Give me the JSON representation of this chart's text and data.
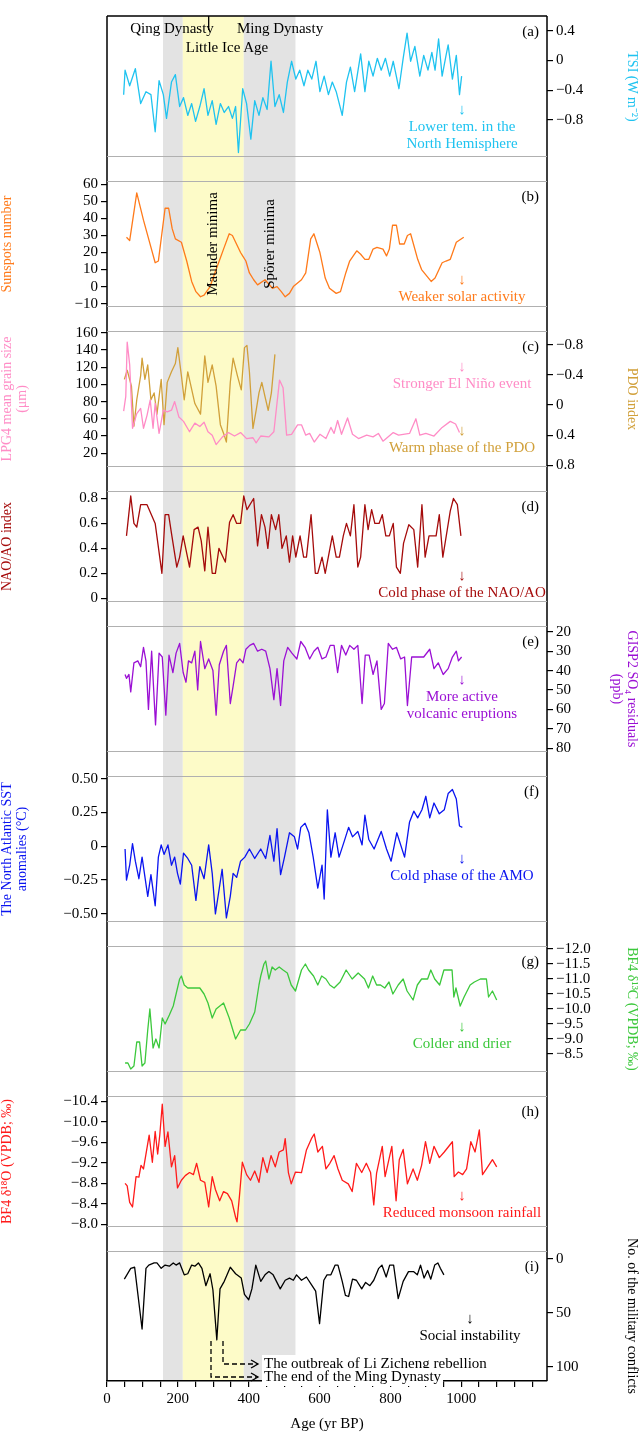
{
  "chart_data": [
    {
      "type": "line",
      "title": "(a)",
      "marker": "none",
      "tick_labels": "y",
      "xlim": [
        0,
        1242
      ],
      "series": [
        {
          "color": "#1fc3f0",
          "axis": "y2",
          "x": [
            47,
            51,
            64,
            80,
            95,
            110,
            124,
            136,
            147,
            159,
            168,
            182,
            193,
            205,
            216,
            228,
            239,
            250,
            262,
            274,
            285,
            297,
            308,
            320,
            331,
            343,
            354,
            363,
            371,
            383,
            394,
            406,
            417,
            429,
            440,
            452,
            463,
            474,
            486,
            498,
            509,
            521,
            533,
            544,
            556,
            567,
            578,
            590,
            601,
            613,
            625,
            636,
            647,
            664,
            676,
            687,
            699,
            716,
            728,
            739,
            751,
            763,
            774,
            786,
            798,
            808,
            824,
            836,
            847,
            857,
            869,
            883,
            894,
            906,
            917,
            926,
            936,
            946,
            957,
            963,
            975,
            986,
            995,
            1001
          ],
          "values": [
            -0.46,
            -0.13,
            -0.34,
            -0.11,
            -0.58,
            -0.42,
            -0.46,
            -0.96,
            -0.27,
            -0.46,
            -0.78,
            -0.29,
            -0.19,
            -0.62,
            -0.5,
            -0.74,
            -0.58,
            -0.82,
            -0.62,
            -0.38,
            -0.74,
            -0.54,
            -0.86,
            -0.58,
            -0.7,
            -0.62,
            -0.78,
            -0.62,
            -1.24,
            -0.38,
            -0.58,
            -1.06,
            -0.54,
            -0.74,
            -0.5,
            -0.66,
            -0.01,
            -0.62,
            -0.46,
            -0.7,
            -0.29,
            -0.01,
            -0.25,
            -0.13,
            -0.34,
            -0.13,
            -0.25,
            -0.01,
            -0.42,
            -0.21,
            -0.46,
            -0.29,
            -0.42,
            -0.74,
            -0.29,
            -0.09,
            -0.42,
            0.09,
            -0.42,
            -0.01,
            -0.21,
            0.03,
            -0.13,
            0.03,
            -0.21,
            -0.01,
            -0.38,
            0.03,
            0.37,
            -0.01,
            0.19,
            -0.21,
            0.07,
            -0.13,
            0.11,
            -0.13,
            0.29,
            -0.21,
            0.07,
            0.21,
            -0.25,
            0.07,
            -0.46,
            -0.21
          ]
        }
      ],
      "y2lim": [
        -1.3,
        0.6
      ],
      "y2ticks": [
        0.4,
        0,
        {
          "value": -0.4,
          "label": "−0.4"
        },
        {
          "value": -0.8,
          "label": "−0.8"
        }
      ],
      "y2label": "TSI (W m⁻²)",
      "bands": [
        {
          "axis": "x",
          "from": 158,
          "to": 214,
          "color": "#e3e3e3"
        },
        {
          "axis": "x",
          "from": 214,
          "to": 386,
          "color": "#fdfbc8"
        },
        {
          "axis": "x",
          "from": 386,
          "to": 532,
          "color": "#e3e3e3"
        }
      ],
      "ref_lines": [
        {
          "axis": "x",
          "value": 287
        }
      ],
      "annotations": [
        "↓\nLower tem. in the\nNorth Hemisphere",
        "Qing Dynasty",
        "Ming Dynasty",
        "Little Ice Age"
      ]
    },
    {
      "type": "line",
      "title": "(b)",
      "marker": "none",
      "tick_labels": "y",
      "xlim": [
        0,
        1242
      ],
      "series": [
        {
          "color": "#ff7a1a",
          "x": [
            55,
            64,
            84,
            103,
            136,
            145,
            164,
            174,
            184,
            193,
            210,
            225,
            239,
            251,
            264,
            274,
            291,
            308,
            329,
            345,
            354,
            377,
            392,
            402,
            414,
            425,
            446,
            467,
            480,
            492,
            503,
            515,
            526,
            549,
            561,
            575,
            584,
            601,
            616,
            628,
            647,
            659,
            674,
            685,
            705,
            716,
            728,
            739,
            751,
            762,
            779,
            789,
            797,
            806,
            817,
            826,
            839,
            848,
            857,
            877,
            888,
            915,
            926,
            946,
            957,
            969,
            986,
            1007
          ],
          "values": [
            29,
            27,
            55,
            39,
            14,
            15,
            46,
            46,
            34,
            28,
            26,
            15,
            3,
            -3,
            -6,
            -5,
            0,
            10,
            22,
            31,
            30,
            20,
            15,
            8,
            4,
            1,
            4,
            -1,
            0,
            -3,
            -6,
            -4,
            0,
            4,
            8,
            28,
            31,
            20,
            5,
            -1,
            -4,
            -3,
            8,
            15,
            21,
            19,
            16,
            16,
            22,
            23,
            22,
            18,
            22,
            36,
            36,
            25,
            25,
            30,
            31,
            16,
            10,
            3,
            5,
            14,
            15,
            16,
            26,
            29
          ]
        }
      ],
      "ylim": [
        -12,
        62
      ],
      "yticks": [
        60,
        50,
        40,
        30,
        20,
        10,
        0,
        {
          "value": -10,
          "label": "−10"
        }
      ],
      "ylabel": "Sunspots number",
      "bands": [
        {
          "axis": "x",
          "from": 158,
          "to": 214,
          "color": "#e3e3e3"
        },
        {
          "axis": "x",
          "from": 214,
          "to": 386,
          "color": "#fdfbc8",
          "label": "Maunder minima"
        },
        {
          "axis": "x",
          "from": 386,
          "to": 532,
          "color": "#e3e3e3",
          "label": "Spörer minima"
        }
      ],
      "annotations": [
        "↓\nWeaker solar activity"
      ]
    },
    {
      "type": "line",
      "title": "(c)",
      "marker": "none",
      "tick_labels": "y",
      "xlim": [
        0,
        1242
      ],
      "series": [
        {
          "color": "#ff8cc6",
          "x": [
            47,
            53,
            57,
            64,
            72,
            84,
            95,
            103,
            113,
            122,
            130,
            136,
            147,
            159,
            170,
            182,
            191,
            203,
            216,
            233,
            248,
            262,
            274,
            285,
            297,
            308,
            326,
            343,
            360,
            377,
            394,
            412,
            421,
            434,
            457,
            471,
            487,
            497,
            507,
            521,
            538,
            549,
            561,
            572,
            585,
            601,
            618,
            632,
            641,
            651,
            662,
            679,
            693,
            710,
            733,
            751,
            766,
            779,
            808,
            823,
            854,
            872,
            883,
            900,
            923,
            946,
            969,
            984,
            995
          ],
          "values": [
            69,
            86,
            149,
            123,
            49,
            66,
            72,
            49,
            64,
            82,
            49,
            78,
            43,
            70,
            68,
            70,
            80,
            62,
            57,
            45,
            55,
            51,
            56,
            45,
            41,
            30,
            39,
            44,
            40,
            44,
            37,
            38,
            32,
            40,
            39,
            45,
            105,
            96,
            41,
            42,
            53,
            53,
            41,
            43,
            33,
            42,
            37,
            50,
            43,
            58,
            42,
            61,
            42,
            37,
            41,
            39,
            43,
            34,
            44,
            41,
            43,
            60,
            41,
            43,
            40,
            50,
            57,
            54,
            44
          ]
        },
        {
          "color": "#d1a03a",
          "axis": "y2",
          "x": [
            49,
            57,
            69,
            76,
            84,
            95,
            99,
            107,
            115,
            124,
            133,
            141,
            153,
            161,
            170,
            182,
            193,
            200,
            210,
            218,
            228,
            237,
            248,
            264,
            276,
            285,
            297,
            308,
            320,
            331,
            337,
            348,
            356,
            368,
            379,
            388,
            395,
            402,
            412,
            421,
            429,
            437,
            446,
            455,
            464,
            474
          ],
          "values": [
            -0.34,
            -0.46,
            -0.25,
            0.28,
            -0.07,
            -0.39,
            -0.62,
            -0.34,
            -0.53,
            -0.07,
            -0.16,
            0.12,
            -0.34,
            0.26,
            -0.3,
            -0.44,
            -0.55,
            -0.76,
            -0.39,
            -0.07,
            -0.44,
            -0.25,
            -0.02,
            0.12,
            -0.65,
            -0.3,
            -0.53,
            -0.25,
            0.26,
            0.4,
            0.49,
            -0.3,
            -0.62,
            -0.39,
            -0.2,
            -0.76,
            -0.79,
            -0.44,
            0.31,
            0.07,
            -0.16,
            -0.3,
            -0.11,
            0.07,
            -0.16,
            -0.67
          ]
        }
      ],
      "ylim": [
        4,
        162
      ],
      "yticks": [
        160,
        140,
        120,
        100,
        80,
        60,
        40,
        20
      ],
      "ylabel": "LPG4 mean grain size (μm)",
      "y2lim": [
        0.82,
        -0.98
      ],
      "y2ticks": [
        {
          "value": -0.8,
          "label": "−0.8"
        },
        {
          "value": -0.4,
          "label": "−0.4"
        },
        0,
        0.4,
        0.8
      ],
      "y2label": "PDO index",
      "bands": [
        {
          "axis": "x",
          "from": 158,
          "to": 214,
          "color": "#e3e3e3"
        },
        {
          "axis": "x",
          "from": 214,
          "to": 386,
          "color": "#fdfbc8"
        },
        {
          "axis": "x",
          "from": 386,
          "to": 532,
          "color": "#e3e3e3"
        }
      ],
      "annotations": [
        "↓\nStronger El Niño event",
        "↓\nWarm phase of the PDO"
      ]
    },
    {
      "type": "line",
      "title": "(d)",
      "marker": "none",
      "tick_labels": "y",
      "xlim": [
        0,
        1242
      ],
      "series": [
        {
          "color": "#a50b0b",
          "x": [
            55,
            67,
            76,
            84,
            95,
            113,
            136,
            155,
            164,
            174,
            182,
            197,
            205,
            215,
            233,
            246,
            257,
            266,
            276,
            285,
            297,
            306,
            316,
            334,
            346,
            356,
            366,
            377,
            386,
            395,
            414,
            425,
            436,
            446,
            454,
            464,
            476,
            485,
            494,
            506,
            515,
            524,
            533,
            545,
            555,
            563,
            576,
            588,
            595,
            607,
            616,
            636,
            647,
            656,
            667,
            676,
            687,
            697,
            708,
            716,
            728,
            737,
            747,
            756,
            768,
            777,
            787,
            797,
            808,
            817,
            828,
            837,
            852,
            866,
            877,
            889,
            898,
            909,
            929,
            938,
            948,
            969,
            978,
            989,
            999
          ],
          "values": [
            0.5,
            0.82,
            0.6,
            0.57,
            0.75,
            0.75,
            0.6,
            0.2,
            0.67,
            0.67,
            0.52,
            0.25,
            0.33,
            0.5,
            0.25,
            0.55,
            0.57,
            0.46,
            0.22,
            0.57,
            0.2,
            0.2,
            0.4,
            0.29,
            0.61,
            0.67,
            0.6,
            0.6,
            0.82,
            0.71,
            0.8,
            0.42,
            0.67,
            0.57,
            0.4,
            0.67,
            0.55,
            0.67,
            0.4,
            0.5,
            0.29,
            0.5,
            0.33,
            0.5,
            0.33,
            0.33,
            0.67,
            0.2,
            0.2,
            0.33,
            0.2,
            0.5,
            0.33,
            0.33,
            0.5,
            0.6,
            0.5,
            0.75,
            0.25,
            0.33,
            0.75,
            0.55,
            0.71,
            0.6,
            0.6,
            0.67,
            0.5,
            0.5,
            0.6,
            0.25,
            0.2,
            0.44,
            0.59,
            0.55,
            0.25,
            0.75,
            0.33,
            0.5,
            0.5,
            0.67,
            0.33,
            0.7,
            0.8,
            0.75,
            0.5
          ]
        }
      ],
      "ylim": [
        -0.03,
        0.86
      ],
      "yticks": [
        0.8,
        0.6,
        0.4,
        0.2,
        0
      ],
      "ylabel": "NAO/AO index",
      "bands": [
        {
          "axis": "x",
          "from": 158,
          "to": 214,
          "color": "#e3e3e3"
        },
        {
          "axis": "x",
          "from": 214,
          "to": 386,
          "color": "#fdfbc8"
        },
        {
          "axis": "x",
          "from": 386,
          "to": 532,
          "color": "#e3e3e3"
        }
      ],
      "annotations": [
        "↓\nCold phase of the NAO/AO"
      ]
    },
    {
      "type": "line",
      "title": "(e)",
      "marker": "none",
      "tick_labels": "y",
      "xlim": [
        0,
        1242
      ],
      "series": [
        {
          "color": "#9b10d4",
          "axis": "y2",
          "x": [
            51,
            55,
            62,
            67,
            76,
            87,
            95,
            103,
            110,
            117,
            126,
            137,
            147,
            156,
            166,
            175,
            186,
            195,
            205,
            215,
            223,
            230,
            239,
            248,
            256,
            264,
            276,
            287,
            299,
            308,
            317,
            329,
            337,
            348,
            356,
            366,
            375,
            384,
            392,
            403,
            414,
            425,
            437,
            448,
            460,
            471,
            480,
            490,
            499,
            510,
            522,
            536,
            547,
            559,
            572,
            584,
            595,
            607,
            618,
            630,
            641,
            651,
            662,
            674,
            685,
            697,
            708,
            720,
            729,
            740,
            751,
            762,
            774,
            783,
            794,
            806,
            817,
            829,
            840,
            848,
            860,
            877,
            894,
            911,
            923,
            935,
            949,
            963,
            975,
            986,
            992,
            1001
          ],
          "values": [
            42,
            44,
            42,
            51,
            36,
            35,
            38,
            28,
            35,
            60,
            30,
            68,
            31,
            33,
            63,
            32,
            41,
            31,
            26,
            41,
            46,
            35,
            36,
            30,
            50,
            25,
            39,
            34,
            40,
            63,
            37,
            30,
            27,
            57,
            48,
            36,
            34,
            36,
            29,
            27,
            26,
            30,
            29,
            30,
            39,
            55,
            39,
            58,
            35,
            28,
            31,
            34,
            25,
            28,
            34,
            30,
            28,
            34,
            33,
            27,
            27,
            41,
            27,
            32,
            27,
            29,
            27,
            57,
            32,
            32,
            42,
            35,
            60,
            57,
            26,
            29,
            28,
            34,
            33,
            58,
            33,
            33,
            33,
            29,
            39,
            36,
            42,
            39,
            33,
            30,
            35,
            33
          ]
        }
      ],
      "y2lim": [
        82,
        17
      ],
      "y2ticks": [
        20,
        30,
        40,
        50,
        60,
        70,
        80
      ],
      "y2label": "GISP2 SO₄ residuals (ppb)",
      "bands": [
        {
          "axis": "x",
          "from": 158,
          "to": 214,
          "color": "#e3e3e3"
        },
        {
          "axis": "x",
          "from": 214,
          "to": 386,
          "color": "#fdfbc8"
        },
        {
          "axis": "x",
          "from": 386,
          "to": 532,
          "color": "#e3e3e3"
        }
      ],
      "annotations": [
        "↓\nMore active\nvolcanic eruptions"
      ]
    },
    {
      "type": "line",
      "title": "(f)",
      "marker": "none",
      "tick_labels": "y",
      "xlim": [
        0,
        1242
      ],
      "series": [
        {
          "color": "#0a14f0",
          "x": [
            51,
            55,
            64,
            72,
            80,
            90,
            99,
            115,
            124,
            136,
            145,
            153,
            161,
            172,
            182,
            191,
            199,
            207,
            216,
            228,
            239,
            251,
            262,
            274,
            287,
            297,
            306,
            317,
            325,
            337,
            348,
            356,
            366,
            377,
            389,
            402,
            417,
            434,
            448,
            460,
            471,
            480,
            490,
            501,
            515,
            529,
            538,
            547,
            559,
            570,
            582,
            595,
            607,
            613,
            622,
            632,
            644,
            655,
            670,
            682,
            693,
            708,
            720,
            728,
            739,
            754,
            774,
            789,
            802,
            818,
            840,
            854,
            866,
            877,
            889,
            900,
            911,
            923,
            938,
            952,
            963,
            975,
            986,
            995,
            1003
          ],
          "values": [
            -0.02,
            -0.25,
            -0.14,
            0.02,
            -0.11,
            -0.24,
            -0.08,
            -0.37,
            -0.21,
            -0.44,
            -0.08,
            0.01,
            -0.06,
            0.01,
            -0.14,
            -0.08,
            -0.2,
            -0.28,
            -0.05,
            -0.09,
            -0.14,
            -0.4,
            -0.15,
            -0.24,
            0.01,
            -0.2,
            -0.5,
            -0.31,
            -0.17,
            -0.53,
            -0.37,
            -0.2,
            -0.23,
            -0.11,
            -0.08,
            -0.02,
            -0.09,
            -0.02,
            -0.09,
            0.08,
            -0.11,
            0.13,
            -0.21,
            -0.08,
            0.1,
            0.07,
            -0.02,
            0.14,
            0.17,
            0.1,
            -0.08,
            -0.31,
            -0.14,
            -0.39,
            0.27,
            -0.08,
            0.1,
            -0.08,
            0.04,
            0.14,
            0.07,
            0.11,
            0.01,
            0.23,
            0.05,
            -0.02,
            0.11,
            -0.02,
            -0.11,
            0.1,
            -0.08,
            0.18,
            0.26,
            0.21,
            0.27,
            0.37,
            0.21,
            0.32,
            0.24,
            0.27,
            0.39,
            0.42,
            0.35,
            0.15,
            0.14
          ]
        }
      ],
      "ylim": [
        -0.56,
        0.52
      ],
      "yticks": [
        {
          "value": 0.5,
          "label": "0.50"
        },
        0.25,
        0,
        {
          "value": -0.25,
          "label": "−0.25"
        },
        {
          "value": -0.5,
          "label": "−0.50"
        }
      ],
      "ylabel": "The North Atlantic SST anomalies (°C)",
      "bands": [
        {
          "axis": "x",
          "from": 158,
          "to": 214,
          "color": "#e3e3e3"
        },
        {
          "axis": "x",
          "from": 214,
          "to": 386,
          "color": "#fdfbc8"
        },
        {
          "axis": "x",
          "from": 386,
          "to": 532,
          "color": "#e3e3e3"
        }
      ],
      "annotations": [
        "↓\nCold phase of the AMO"
      ]
    },
    {
      "type": "line",
      "title": "(g)",
      "marker": "none",
      "tick_labels": "y",
      "xlim": [
        0,
        1242
      ],
      "series": [
        {
          "color": "#3cc83c",
          "axis": "y2",
          "x": [
            51,
            59,
            67,
            76,
            84,
            92,
            99,
            107,
            115,
            121,
            130,
            138,
            147,
            156,
            164,
            176,
            187,
            195,
            205,
            210,
            218,
            228,
            239,
            262,
            274,
            285,
            297,
            308,
            329,
            345,
            363,
            377,
            391,
            402,
            417,
            429,
            434,
            443,
            448,
            457,
            466,
            475,
            486,
            497,
            509,
            520,
            532,
            549,
            560,
            569,
            583,
            595,
            606,
            618,
            629,
            641,
            658,
            675,
            692,
            709,
            727,
            738,
            750,
            761,
            772,
            784,
            796,
            807,
            822,
            836,
            847,
            864,
            876,
            888,
            905,
            914,
            925,
            939,
            951,
            962,
            974,
            979,
            985,
            997,
            1008,
            1025,
            1037,
            1054,
            1071,
            1077,
            1088,
            1100
          ],
          "values": [
            -8.2,
            -8.2,
            -8.0,
            -8.1,
            -8.9,
            -8.9,
            -8.1,
            -8.2,
            -9.3,
            -10.0,
            -8.7,
            -9.0,
            -8.7,
            -9.7,
            -9.5,
            -9.8,
            -10.1,
            -10.5,
            -11.0,
            -11.1,
            -10.8,
            -10.7,
            -10.7,
            -10.7,
            -10.5,
            -10.2,
            -9.7,
            -10.0,
            -10.2,
            -9.7,
            -9.0,
            -9.3,
            -9.3,
            -9.5,
            -9.9,
            -10.8,
            -11.1,
            -11.5,
            -11.6,
            -11.0,
            -11.4,
            -11.3,
            -11.4,
            -11.3,
            -11.2,
            -10.8,
            -10.6,
            -11.3,
            -11.5,
            -11.3,
            -11.1,
            -10.8,
            -11.1,
            -11.0,
            -10.8,
            -10.7,
            -10.9,
            -11.3,
            -11.0,
            -11.2,
            -11.0,
            -10.7,
            -11.1,
            -10.8,
            -10.8,
            -10.7,
            -10.9,
            -10.5,
            -10.8,
            -11.0,
            -10.6,
            -10.3,
            -10.8,
            -11.0,
            -11.0,
            -11.3,
            -11.0,
            -10.8,
            -11.3,
            -11.3,
            -11.3,
            -10.4,
            -10.7,
            -10.1,
            -10.4,
            -10.8,
            -10.9,
            -11.0,
            -11.0,
            -10.4,
            -10.6,
            -10.3
          ]
        }
      ],
      "y2lim": [
        -7.9,
        -12.1
      ],
      "y2ticks": [
        {
          "value": -12,
          "label": "−12.0"
        },
        {
          "value": -11.5,
          "label": "−11.5"
        },
        {
          "value": -11,
          "label": "−11.0"
        },
        {
          "value": -10.5,
          "label": "−10.5"
        },
        {
          "value": -10,
          "label": "−10.0"
        },
        {
          "value": -9.5,
          "label": "−9.5"
        },
        {
          "value": -9,
          "label": "−9.0"
        },
        {
          "value": -8.5,
          "label": "−8.5"
        }
      ],
      "y2label": "BF4 δ¹³C (VPDB; ‰)",
      "bands": [
        {
          "axis": "x",
          "from": 158,
          "to": 214,
          "color": "#e3e3e3"
        },
        {
          "axis": "x",
          "from": 214,
          "to": 386,
          "color": "#fdfbc8"
        },
        {
          "axis": "x",
          "from": 386,
          "to": 532,
          "color": "#e3e3e3"
        }
      ],
      "annotations": [
        "↓\nColder and drier"
      ]
    },
    {
      "type": "line",
      "title": "(h)",
      "marker": "none",
      "tick_labels": "y",
      "xlim": [
        0,
        1242
      ],
      "series": [
        {
          "color": "#ff1a1a",
          "x": [
            51,
            57,
            64,
            72,
            82,
            90,
            96,
            103,
            110,
            119,
            128,
            136,
            143,
            149,
            156,
            164,
            172,
            182,
            191,
            199,
            210,
            221,
            233,
            244,
            253,
            264,
            276,
            287,
            297,
            306,
            318,
            329,
            340,
            352,
            363,
            367,
            374,
            382,
            394,
            405,
            417,
            429,
            440,
            452,
            463,
            475,
            486,
            498,
            503,
            512,
            520,
            532,
            549,
            563,
            577,
            585,
            595,
            608,
            618,
            629,
            641,
            652,
            664,
            681,
            692,
            704,
            719,
            732,
            744,
            753,
            761,
            777,
            785,
            804,
            816,
            825,
            836,
            848,
            864,
            876,
            888,
            899,
            911,
            923,
            938,
            952,
            975,
            980,
            992,
            1004,
            1015,
            1027,
            1039,
            1051,
            1060,
            1071,
            1088,
            1100
          ],
          "values": [
            -8.8,
            -8.75,
            -8.43,
            -8.34,
            -8.93,
            -8.92,
            -9.15,
            -9.08,
            -9.37,
            -9.74,
            -9.21,
            -9.81,
            -9.37,
            -9.74,
            -10.34,
            -9.52,
            -9.8,
            -9.12,
            -9.34,
            -8.71,
            -8.86,
            -8.95,
            -9.01,
            -8.97,
            -9.19,
            -8.86,
            -8.82,
            -8.34,
            -8.93,
            -8.68,
            -8.46,
            -8.64,
            -8.6,
            -8.46,
            -8.14,
            -8.05,
            -8.56,
            -9.21,
            -8.97,
            -8.86,
            -9.04,
            -8.82,
            -9.3,
            -9.01,
            -9.34,
            -9.12,
            -9.41,
            -9.45,
            -9.67,
            -9.01,
            -8.79,
            -9.02,
            -9.01,
            -9.45,
            -9.67,
            -9.76,
            -9.41,
            -9.52,
            -9.08,
            -9.19,
            -9.34,
            -9.08,
            -8.86,
            -8.79,
            -8.64,
            -9.19,
            -9.01,
            -9.19,
            -9.01,
            -8.38,
            -9.0,
            -9.52,
            -8.93,
            -9.52,
            -8.46,
            -9.26,
            -9.46,
            -8.79,
            -9.08,
            -8.86,
            -9.15,
            -9.61,
            -9.19,
            -9.52,
            -9.3,
            -9.41,
            -9.61,
            -8.93,
            -9.02,
            -8.97,
            -9.08,
            -9.61,
            -9.41,
            -9.84,
            -8.97,
            -9.08,
            -9.26,
            -9.12
          ]
        }
      ],
      "ylim": [
        -7.95,
        -10.5
      ],
      "yticks": [
        {
          "value": -10.4,
          "label": "−10.4"
        },
        {
          "value": -10,
          "label": "−10.0"
        },
        {
          "value": -9.6,
          "label": "−9.6"
        },
        {
          "value": -9.2,
          "label": "−9.2"
        },
        {
          "value": -8.8,
          "label": "−8.8"
        },
        {
          "value": -8.4,
          "label": "−8.4"
        },
        {
          "value": -8,
          "label": "−8.0"
        }
      ],
      "ylabel": "BF4 δ¹⁸O (VPDB; ‰)",
      "bands": [
        {
          "axis": "x",
          "from": 158,
          "to": 214,
          "color": "#e3e3e3"
        },
        {
          "axis": "x",
          "from": 214,
          "to": 386,
          "color": "#fdfbc8"
        },
        {
          "axis": "x",
          "from": 386,
          "to": 532,
          "color": "#e3e3e3"
        }
      ],
      "annotations": [
        "↓\nReduced monsoon rainfall"
      ]
    },
    {
      "type": "line",
      "title": "(i)",
      "marker": "none",
      "xlim": [
        0,
        1242
      ],
      "xlabel": "Age (yr BP)",
      "xticks": [
        0,
        {
          "value": 50,
          "label": null
        },
        200,
        {
          "value": 100,
          "label": null
        },
        {
          "value": 150,
          "label": null
        },
        {
          "value": 250,
          "label": null
        },
        {
          "value": 300,
          "label": null
        },
        {
          "value": 350,
          "label": null
        },
        400,
        {
          "value": 450,
          "label": null
        },
        {
          "value": 500,
          "label": null
        },
        {
          "value": 550,
          "label": null
        },
        600,
        {
          "value": 650,
          "label": null
        },
        {
          "value": 700,
          "label": null
        },
        {
          "value": 750,
          "label": null
        },
        800,
        {
          "value": 850,
          "label": null
        },
        {
          "value": 900,
          "label": null
        },
        {
          "value": 950,
          "label": null
        },
        1000,
        {
          "value": 1050,
          "label": null
        },
        {
          "value": 1100,
          "label": null
        },
        {
          "value": 1150,
          "label": null
        },
        {
          "value": 1200,
          "label": null
        }
      ],
      "series": [
        {
          "color": "#000000",
          "axis": "y2",
          "x": [
            49,
            67,
            78,
            99,
            110,
            118,
            133,
            141,
            153,
            164,
            176,
            187,
            195,
            205,
            218,
            228,
            239,
            248,
            258,
            268,
            279,
            291,
            299,
            310,
            319,
            331,
            348,
            363,
            379,
            388,
            400,
            409,
            420,
            434,
            446,
            457,
            469,
            489,
            503,
            515,
            526,
            535,
            549,
            563,
            577,
            589,
            600,
            612,
            621,
            632,
            644,
            652,
            664,
            673,
            682,
            693,
            704,
            719,
            730,
            742,
            753,
            767,
            776,
            788,
            798,
            809,
            822,
            836,
            851,
            865,
            876,
            885,
            895,
            905,
            914,
            925,
            934,
            941,
            951
          ],
          "values": [
            19,
            9,
            8,
            65,
            9,
            6,
            4,
            4,
            9,
            6,
            7,
            4,
            6,
            4,
            15,
            14,
            6,
            7,
            4,
            9,
            25,
            14,
            29,
            75,
            28,
            21,
            8,
            14,
            18,
            33,
            38,
            28,
            6,
            21,
            15,
            12,
            15,
            28,
            20,
            18,
            20,
            15,
            20,
            17,
            24,
            30,
            60,
            20,
            15,
            15,
            6,
            6,
            21,
            34,
            35,
            19,
            20,
            28,
            22,
            25,
            20,
            9,
            6,
            17,
            6,
            6,
            37,
            21,
            12,
            12,
            15,
            6,
            18,
            11,
            19,
            6,
            4,
            9,
            15
          ]
        }
      ],
      "y2lim": [
        113,
        -7
      ],
      "y2ticks": [
        0,
        50,
        100
      ],
      "y2label": "No. of the military conflicts",
      "bands": [
        {
          "axis": "x",
          "from": 158,
          "to": 214,
          "color": "#e3e3e3"
        },
        {
          "axis": "x",
          "from": 214,
          "to": 386,
          "color": "#fdfbc8"
        },
        {
          "axis": "x",
          "from": 386,
          "to": 532,
          "color": "#e3e3e3"
        }
      ],
      "annotations": [
        "↓\nSocial instability",
        "The outbreak of Li Zicheng rebellion",
        "The end of the Ming Dynasty"
      ]
    }
  ]
}
